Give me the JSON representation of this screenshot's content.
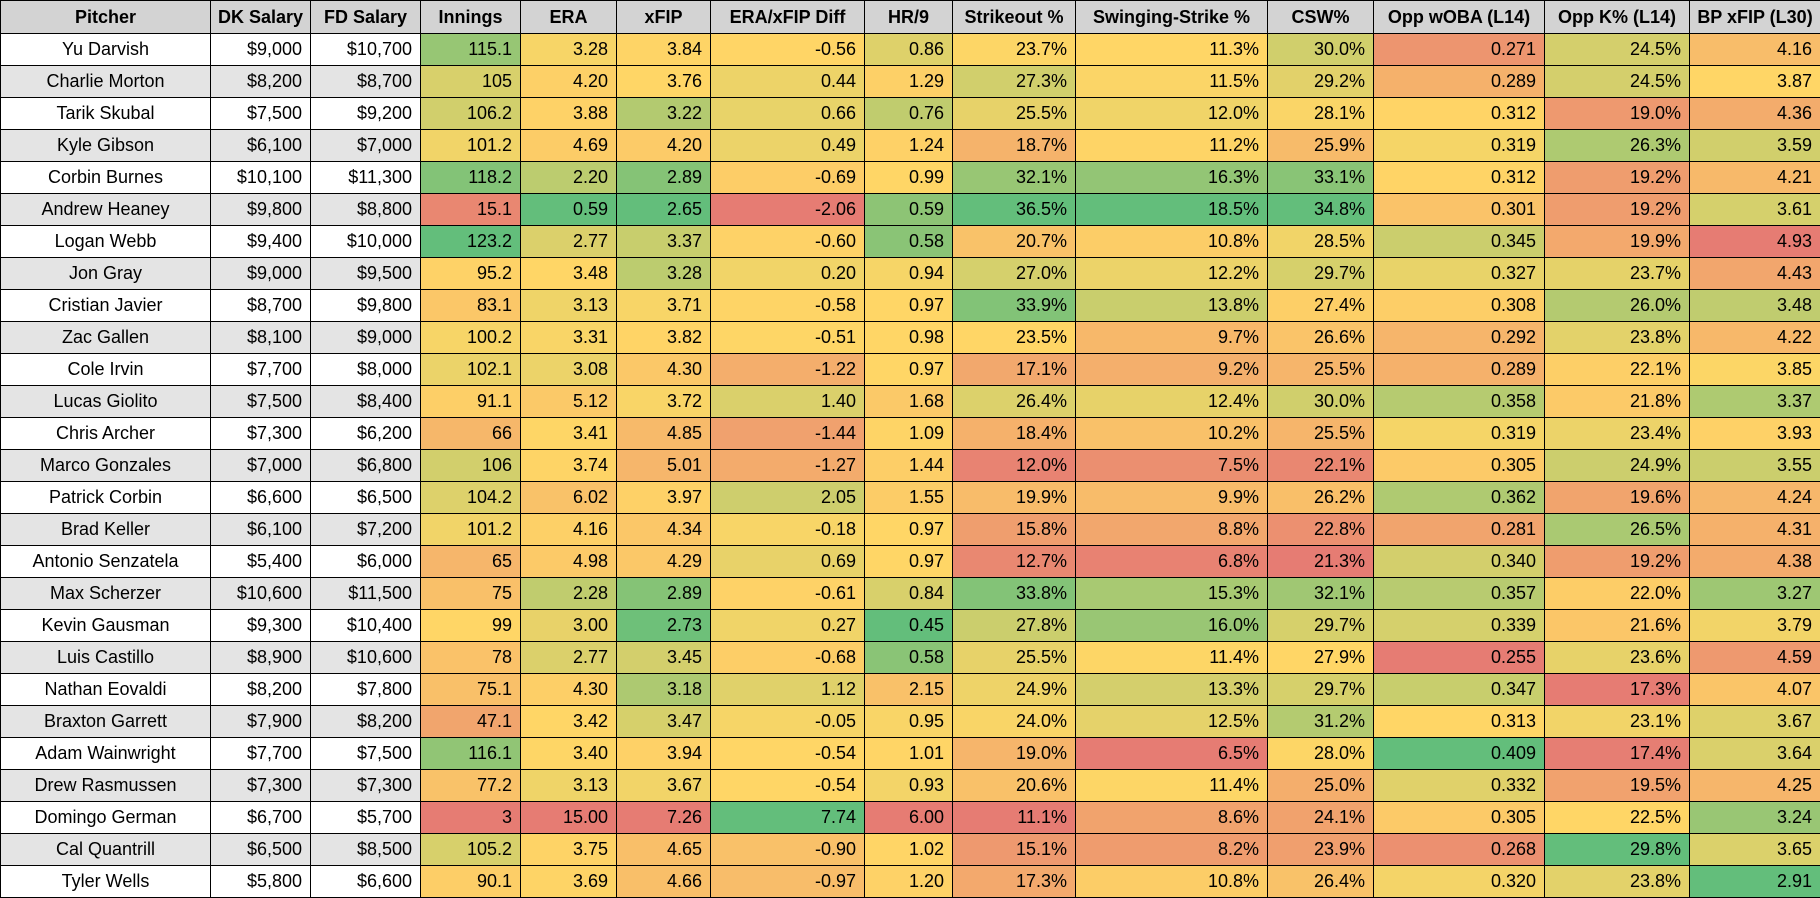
{
  "columns": [
    "Pitcher",
    "DK Salary",
    "FD Salary",
    "Innings",
    "ERA",
    "xFIP",
    "ERA/xFIP Diff",
    "HR/9",
    "Strikeout %",
    "Swinging-Strike %",
    "CSW%",
    "Opp wOBA (L14)",
    "Opp K% (L14)",
    "BP xFIP (L30)"
  ],
  "colors": {
    "green": "#63be7b",
    "yellow": "#ffd666",
    "red": "#e67c73",
    "header_bg": "#d3d3d3",
    "alt_row_bg": "#e4e4e4"
  },
  "rows": [
    [
      "Yu Darvish",
      "$9,000",
      "$10,700",
      "115.1",
      "3.28",
      "3.84",
      "-0.56",
      "0.86",
      "23.7%",
      "11.3%",
      "30.0%",
      "0.271",
      "24.5%",
      "4.16"
    ],
    [
      "Charlie Morton",
      "$8,200",
      "$8,700",
      "105",
      "4.20",
      "3.76",
      "0.44",
      "1.29",
      "27.3%",
      "11.5%",
      "29.2%",
      "0.289",
      "24.5%",
      "3.87"
    ],
    [
      "Tarik Skubal",
      "$7,500",
      "$9,200",
      "106.2",
      "3.88",
      "3.22",
      "0.66",
      "0.76",
      "25.5%",
      "12.0%",
      "28.1%",
      "0.312",
      "19.0%",
      "4.36"
    ],
    [
      "Kyle Gibson",
      "$6,100",
      "$7,000",
      "101.2",
      "4.69",
      "4.20",
      "0.49",
      "1.24",
      "18.7%",
      "11.2%",
      "25.9%",
      "0.319",
      "26.3%",
      "3.59"
    ],
    [
      "Corbin Burnes",
      "$10,100",
      "$11,300",
      "118.2",
      "2.20",
      "2.89",
      "-0.69",
      "0.99",
      "32.1%",
      "16.3%",
      "33.1%",
      "0.312",
      "19.2%",
      "4.21"
    ],
    [
      "Andrew Heaney",
      "$9,800",
      "$8,800",
      "15.1",
      "0.59",
      "2.65",
      "-2.06",
      "0.59",
      "36.5%",
      "18.5%",
      "34.8%",
      "0.301",
      "19.2%",
      "3.61"
    ],
    [
      "Logan Webb",
      "$9,400",
      "$10,000",
      "123.2",
      "2.77",
      "3.37",
      "-0.60",
      "0.58",
      "20.7%",
      "10.8%",
      "28.5%",
      "0.345",
      "19.9%",
      "4.93"
    ],
    [
      "Jon Gray",
      "$9,000",
      "$9,500",
      "95.2",
      "3.48",
      "3.28",
      "0.20",
      "0.94",
      "27.0%",
      "12.2%",
      "29.7%",
      "0.327",
      "23.7%",
      "4.43"
    ],
    [
      "Cristian Javier",
      "$8,700",
      "$9,800",
      "83.1",
      "3.13",
      "3.71",
      "-0.58",
      "0.97",
      "33.9%",
      "13.8%",
      "27.4%",
      "0.308",
      "26.0%",
      "3.48"
    ],
    [
      "Zac Gallen",
      "$8,100",
      "$9,000",
      "100.2",
      "3.31",
      "3.82",
      "-0.51",
      "0.98",
      "23.5%",
      "9.7%",
      "26.6%",
      "0.292",
      "23.8%",
      "4.22"
    ],
    [
      "Cole Irvin",
      "$7,700",
      "$8,000",
      "102.1",
      "3.08",
      "4.30",
      "-1.22",
      "0.97",
      "17.1%",
      "9.2%",
      "25.5%",
      "0.289",
      "22.1%",
      "3.85"
    ],
    [
      "Lucas Giolito",
      "$7,500",
      "$8,400",
      "91.1",
      "5.12",
      "3.72",
      "1.40",
      "1.68",
      "26.4%",
      "12.4%",
      "30.0%",
      "0.358",
      "21.8%",
      "3.37"
    ],
    [
      "Chris Archer",
      "$7,300",
      "$6,200",
      "66",
      "3.41",
      "4.85",
      "-1.44",
      "1.09",
      "18.4%",
      "10.2%",
      "25.5%",
      "0.319",
      "23.4%",
      "3.93"
    ],
    [
      "Marco Gonzales",
      "$7,000",
      "$6,800",
      "106",
      "3.74",
      "5.01",
      "-1.27",
      "1.44",
      "12.0%",
      "7.5%",
      "22.1%",
      "0.305",
      "24.9%",
      "3.55"
    ],
    [
      "Patrick Corbin",
      "$6,600",
      "$6,500",
      "104.2",
      "6.02",
      "3.97",
      "2.05",
      "1.55",
      "19.9%",
      "9.9%",
      "26.2%",
      "0.362",
      "19.6%",
      "4.24"
    ],
    [
      "Brad Keller",
      "$6,100",
      "$7,200",
      "101.2",
      "4.16",
      "4.34",
      "-0.18",
      "0.97",
      "15.8%",
      "8.8%",
      "22.8%",
      "0.281",
      "26.5%",
      "4.31"
    ],
    [
      "Antonio Senzatela",
      "$5,400",
      "$6,000",
      "65",
      "4.98",
      "4.29",
      "0.69",
      "0.97",
      "12.7%",
      "6.8%",
      "21.3%",
      "0.340",
      "19.2%",
      "4.38"
    ],
    [
      "Max Scherzer",
      "$10,600",
      "$11,500",
      "75",
      "2.28",
      "2.89",
      "-0.61",
      "0.84",
      "33.8%",
      "15.3%",
      "32.1%",
      "0.357",
      "22.0%",
      "3.27"
    ],
    [
      "Kevin Gausman",
      "$9,300",
      "$10,400",
      "99",
      "3.00",
      "2.73",
      "0.27",
      "0.45",
      "27.8%",
      "16.0%",
      "29.7%",
      "0.339",
      "21.6%",
      "3.79"
    ],
    [
      "Luis Castillo",
      "$8,900",
      "$10,600",
      "78",
      "2.77",
      "3.45",
      "-0.68",
      "0.58",
      "25.5%",
      "11.4%",
      "27.9%",
      "0.255",
      "23.6%",
      "4.59"
    ],
    [
      "Nathan Eovaldi",
      "$8,200",
      "$7,800",
      "75.1",
      "4.30",
      "3.18",
      "1.12",
      "2.15",
      "24.9%",
      "13.3%",
      "29.7%",
      "0.347",
      "17.3%",
      "4.07"
    ],
    [
      "Braxton Garrett",
      "$7,900",
      "$8,200",
      "47.1",
      "3.42",
      "3.47",
      "-0.05",
      "0.95",
      "24.0%",
      "12.5%",
      "31.2%",
      "0.313",
      "23.1%",
      "3.67"
    ],
    [
      "Adam Wainwright",
      "$7,700",
      "$7,500",
      "116.1",
      "3.40",
      "3.94",
      "-0.54",
      "1.01",
      "19.0%",
      "6.5%",
      "28.0%",
      "0.409",
      "17.4%",
      "3.64"
    ],
    [
      "Drew Rasmussen",
      "$7,300",
      "$7,300",
      "77.2",
      "3.13",
      "3.67",
      "-0.54",
      "0.93",
      "20.6%",
      "11.4%",
      "25.0%",
      "0.332",
      "19.5%",
      "4.25"
    ],
    [
      "Domingo German",
      "$6,700",
      "$5,700",
      "3",
      "15.00",
      "7.26",
      "7.74",
      "6.00",
      "11.1%",
      "8.6%",
      "24.1%",
      "0.305",
      "22.5%",
      "3.24"
    ],
    [
      "Cal Quantrill",
      "$6,500",
      "$8,500",
      "105.2",
      "3.75",
      "4.65",
      "-0.90",
      "1.02",
      "15.1%",
      "8.2%",
      "23.9%",
      "0.268",
      "29.8%",
      "3.65"
    ],
    [
      "Tyler Wells",
      "$5,800",
      "$6,600",
      "90.1",
      "3.69",
      "4.66",
      "-0.97",
      "1.20",
      "17.3%",
      "10.8%",
      "26.4%",
      "0.320",
      "23.8%",
      "2.91"
    ]
  ]
}
